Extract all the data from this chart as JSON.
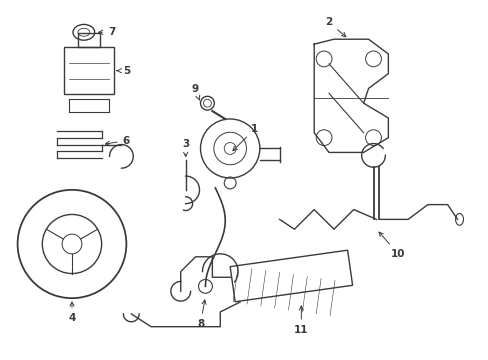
{
  "background_color": "#ffffff",
  "line_color": "#3a3a3a",
  "lw": 1.0
}
